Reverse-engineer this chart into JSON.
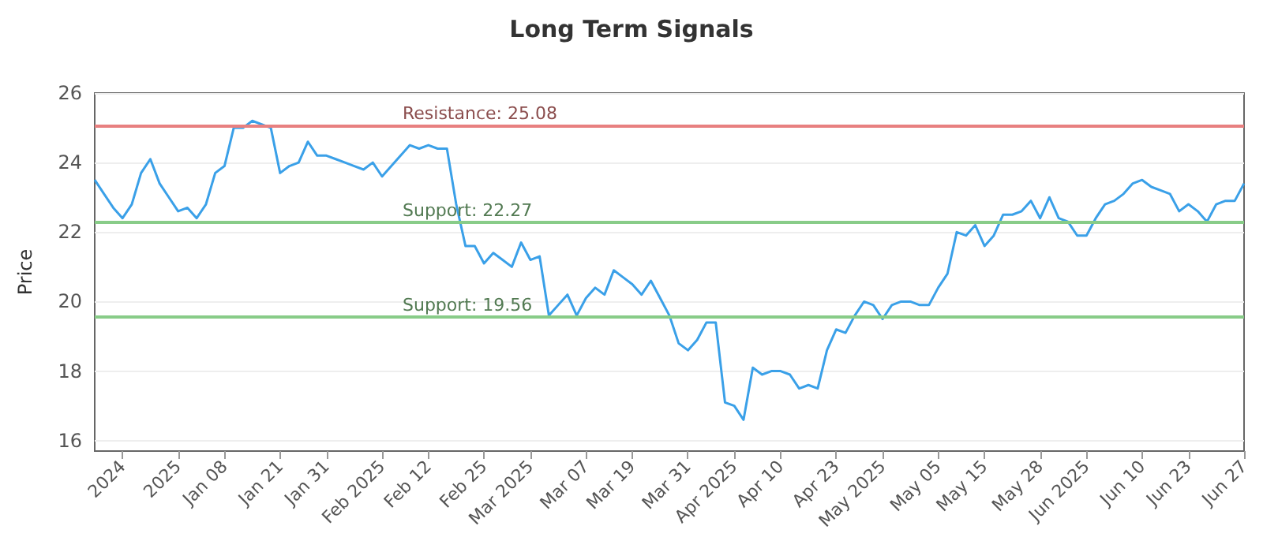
{
  "chart_data": {
    "type": "line",
    "title": "Long Term Signals",
    "ylabel": "Price",
    "categories": [
      null,
      null,
      null,
      "2024",
      null,
      null,
      null,
      null,
      null,
      "2025",
      null,
      null,
      null,
      null,
      "Jan 08",
      null,
      null,
      null,
      null,
      null,
      "Jan 21",
      null,
      null,
      null,
      null,
      "Jan 31",
      null,
      null,
      null,
      null,
      null,
      "Feb 2025",
      null,
      null,
      null,
      null,
      "Feb 12",
      null,
      null,
      null,
      null,
      null,
      "Feb 25",
      null,
      null,
      null,
      null,
      "Mar 2025",
      null,
      null,
      null,
      null,
      null,
      "Mar 07",
      null,
      null,
      null,
      null,
      "Mar 19",
      null,
      null,
      null,
      null,
      null,
      "Mar 31",
      null,
      null,
      null,
      null,
      "Apr 2025",
      null,
      null,
      null,
      null,
      "Apr 10",
      null,
      null,
      null,
      null,
      null,
      "Apr 23",
      null,
      null,
      null,
      null,
      "May 2025",
      null,
      null,
      null,
      null,
      null,
      "May 05",
      null,
      null,
      null,
      null,
      "May 15",
      null,
      null,
      null,
      null,
      null,
      "May 28",
      null,
      null,
      null,
      null,
      "Jun 2025",
      null,
      null,
      null,
      null,
      null,
      "Jun 10",
      null,
      null,
      null,
      null,
      "Jun 23",
      null,
      null,
      null,
      null,
      null,
      "Jun 27"
    ],
    "series": [
      {
        "color": "#3aa0e8",
        "values": [
          23.5,
          23.1,
          22.7,
          22.4,
          22.8,
          23.7,
          24.1,
          23.4,
          23.0,
          22.6,
          22.7,
          22.4,
          22.8,
          23.7,
          23.9,
          25.0,
          25.0,
          25.2,
          25.1,
          25.0,
          23.7,
          23.9,
          24.0,
          24.6,
          24.2,
          24.2,
          24.1,
          24.0,
          23.9,
          23.8,
          24.0,
          23.6,
          23.9,
          24.2,
          24.5,
          24.4,
          24.5,
          24.4,
          24.4,
          22.8,
          21.6,
          21.6,
          21.1,
          21.4,
          21.2,
          21.0,
          21.7,
          21.2,
          21.3,
          19.6,
          19.9,
          20.2,
          19.6,
          20.1,
          20.4,
          20.2,
          20.9,
          20.7,
          20.5,
          20.2,
          20.6,
          20.1,
          19.6,
          18.8,
          18.6,
          18.9,
          19.4,
          19.4,
          17.1,
          17.0,
          16.6,
          18.1,
          17.9,
          18.0,
          18.0,
          17.9,
          17.5,
          17.6,
          17.5,
          18.6,
          19.2,
          19.1,
          19.6,
          20.0,
          19.9,
          19.5,
          19.9,
          20.0,
          20.0,
          19.9,
          19.9,
          20.4,
          20.8,
          22.0,
          21.9,
          22.2,
          21.6,
          21.9,
          22.5,
          22.5,
          22.6,
          22.9,
          22.4,
          23.0,
          22.4,
          22.3,
          21.9,
          21.9,
          22.4,
          22.8,
          22.9,
          23.1,
          23.4,
          23.5,
          23.3,
          23.2,
          23.1,
          22.6,
          22.8,
          22.6,
          22.3,
          22.8,
          22.9,
          22.9,
          23.4
        ]
      }
    ],
    "ylim": [
      15.7,
      26
    ],
    "yticks": [
      16,
      18,
      20,
      22,
      24,
      26
    ],
    "grid": "y",
    "marker": "none",
    "ref_lines": [
      {
        "axis": "y",
        "value": 25.08,
        "label": "Resistance: 25.08",
        "color": "#e88080"
      },
      {
        "axis": "y",
        "value": 22.27,
        "label": "Support: 22.27",
        "color": "#88cc88"
      },
      {
        "axis": "y",
        "value": 19.56,
        "label": "Support: 19.56",
        "color": "#88cc88"
      }
    ]
  }
}
